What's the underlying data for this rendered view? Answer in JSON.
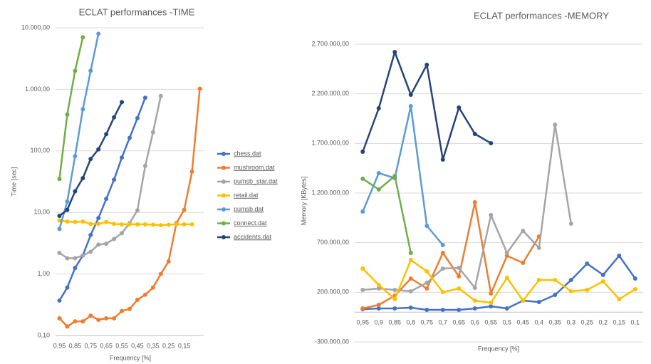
{
  "chart_data": [
    {
      "type": "line",
      "title": "ECLAT performances -TIME",
      "xlabel": "Frequency [%]",
      "ylabel": "Time [sec]",
      "log": true,
      "grid": true,
      "legend": "right",
      "categories": [
        "0,95",
        null,
        "0,85",
        null,
        "0,75",
        null,
        "0,65",
        null,
        "0,55",
        null,
        "0,45",
        null,
        "0,35",
        null,
        "0,25",
        null,
        "0,15",
        null,
        null
      ],
      "ylim": [
        0.1,
        10000
      ],
      "yticks": [
        {
          "value": 0.1,
          "label": "0,10"
        },
        {
          "value": 1,
          "label": "1,00"
        },
        {
          "value": 10,
          "label": "10,00"
        },
        {
          "value": 100,
          "label": "100,00"
        },
        {
          "value": 1000,
          "label": "1.000,00"
        },
        {
          "value": 10000,
          "label": "10.000,00"
        }
      ],
      "series": [
        {
          "name": "chess.dat",
          "color": "#4472c4",
          "values": [
            0.37,
            0.6,
            1.25,
            2.0,
            4.3,
            8.1,
            16.6,
            34,
            78,
            163,
            340,
            730,
            null,
            null,
            null,
            null,
            null,
            null,
            null
          ]
        },
        {
          "name": "mushroom.dat",
          "color": "#ed7d31",
          "values": [
            0.19,
            0.14,
            0.17,
            0.17,
            0.21,
            0.18,
            0.19,
            0.19,
            0.25,
            0.27,
            0.38,
            0.46,
            0.6,
            1.0,
            1.6,
            6.7,
            11,
            46,
            1020
          ]
        },
        {
          "name": "pumsb_star.dat",
          "color": "#a5a5a5",
          "values": [
            2.2,
            1.8,
            1.8,
            2.0,
            2.3,
            3.0,
            3.1,
            3.7,
            4.6,
            6.7,
            10.8,
            57,
            200,
            780,
            null,
            null,
            null,
            null,
            null
          ]
        },
        {
          "name": "retail.dat",
          "color": "#ffc000",
          "values": [
            7.4,
            7.1,
            7.0,
            7.1,
            6.5,
            6.5,
            7.0,
            6.5,
            6.4,
            6.4,
            6.4,
            6.4,
            6.3,
            6.2,
            6.3,
            6.4,
            6.4,
            6.4,
            null
          ]
        },
        {
          "name": "pumsb.dat",
          "color": "#5b9bd5",
          "values": [
            5.4,
            15,
            82,
            475,
            2000,
            8000,
            null,
            null,
            null,
            null,
            null,
            null,
            null,
            null,
            null,
            null,
            null,
            null,
            null
          ]
        },
        {
          "name": "connect.dat",
          "color": "#70ad47",
          "values": [
            35,
            390,
            2000,
            7000,
            null,
            null,
            null,
            null,
            null,
            null,
            null,
            null,
            null,
            null,
            null,
            null,
            null,
            null,
            null
          ]
        },
        {
          "name": "accidents.dat",
          "color": "#264478",
          "values": [
            8.8,
            11,
            22,
            36,
            74,
            106,
            187,
            350,
            620,
            null,
            null,
            null,
            null,
            null,
            null,
            null,
            null,
            null,
            null
          ]
        }
      ]
    },
    {
      "type": "line",
      "title": "ECLAT performances -MEMORY",
      "xlabel": "Frequency [%]",
      "ylabel": "Memory [KBytes]",
      "log": false,
      "grid": true,
      "categories": [
        "0,95",
        "0,9",
        "0,85",
        "0,8",
        "0,75",
        "0,7",
        "0,65",
        "0,6",
        "0,55",
        "0,5",
        "0,45",
        "0,4",
        "0,35",
        "0,3",
        "0,25",
        "0,2",
        "0,15",
        "0,1"
      ],
      "ylim": [
        -300000,
        2700000
      ],
      "yticks": [
        {
          "value": -300000,
          "label": "-300.000,00"
        },
        {
          "value": 200000,
          "label": "200.000,00"
        },
        {
          "value": 700000,
          "label": "700.000,00"
        },
        {
          "value": 1200000,
          "label": "1.200.000,00"
        },
        {
          "value": 1700000,
          "label": "1.700.000,00"
        },
        {
          "value": 2200000,
          "label": "2.200.000,00"
        },
        {
          "value": 2700000,
          "label": "2.700.000,00"
        }
      ],
      "series": [
        {
          "color": "#4472c4",
          "values": [
            30000,
            37000,
            37000,
            45000,
            23000,
            23000,
            23000,
            37000,
            59000,
            37000,
            116000,
            102000,
            174000,
            324000,
            489000,
            375000,
            568000,
            339000
          ]
        },
        {
          "color": "#ed7d31",
          "values": [
            37000,
            73000,
            166000,
            339000,
            238000,
            597000,
            360000,
            1107000,
            188000,
            568000,
            497000,
            762000,
            null,
            null,
            null,
            null,
            null,
            null
          ]
        },
        {
          "color": "#a5a5a5",
          "values": [
            224000,
            238000,
            224000,
            210000,
            296000,
            439000,
            446000,
            245000,
            978000,
            597000,
            820000,
            647000,
            1889000,
            891000,
            null,
            null,
            null,
            null
          ]
        },
        {
          "color": "#ffc000",
          "values": [
            439000,
            274000,
            131000,
            525000,
            411000,
            202000,
            238000,
            116000,
            95000,
            346000,
            116000,
            324000,
            324000,
            210000,
            224000,
            310000,
            131000,
            231000
          ]
        },
        {
          "color": "#5b9bd5",
          "values": [
            1013000,
            1401000,
            1351000,
            2076000,
            870000,
            676000,
            null,
            null,
            null,
            null,
            null,
            null,
            null,
            null,
            null,
            null,
            null,
            null
          ]
        },
        {
          "color": "#70ad47",
          "values": [
            1344000,
            1236000,
            1372000,
            597000,
            null,
            null,
            null,
            null,
            null,
            null,
            null,
            null,
            null,
            null,
            null,
            null,
            null,
            null
          ]
        },
        {
          "color": "#264478",
          "values": [
            1616000,
            2054000,
            2621000,
            2190000,
            2492000,
            1537000,
            2061000,
            1796000,
            1702000,
            null,
            null,
            null,
            null,
            null,
            null,
            null,
            null,
            null
          ]
        }
      ]
    }
  ]
}
